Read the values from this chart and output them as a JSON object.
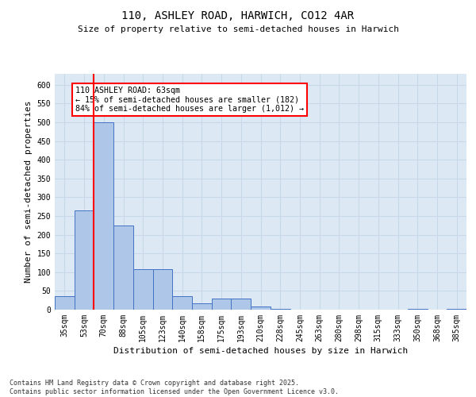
{
  "title1": "110, ASHLEY ROAD, HARWICH, CO12 4AR",
  "title2": "Size of property relative to semi-detached houses in Harwich",
  "xlabel": "Distribution of semi-detached houses by size in Harwich",
  "ylabel": "Number of semi-detached properties",
  "categories": [
    "35sqm",
    "53sqm",
    "70sqm",
    "88sqm",
    "105sqm",
    "123sqm",
    "140sqm",
    "158sqm",
    "175sqm",
    "193sqm",
    "210sqm",
    "228sqm",
    "245sqm",
    "263sqm",
    "280sqm",
    "298sqm",
    "315sqm",
    "333sqm",
    "350sqm",
    "368sqm",
    "385sqm"
  ],
  "values": [
    35,
    265,
    500,
    225,
    108,
    108,
    35,
    18,
    30,
    30,
    8,
    3,
    0,
    0,
    0,
    0,
    0,
    0,
    2,
    0,
    2
  ],
  "bar_color": "#aec6e8",
  "bar_edge_color": "#4472c4",
  "grid_color": "#c8d8e8",
  "background_color": "#dce9f5",
  "vline_color": "red",
  "vline_x": 1.5,
  "annotation_text": "110 ASHLEY ROAD: 63sqm\n← 15% of semi-detached houses are smaller (182)\n84% of semi-detached houses are larger (1,012) →",
  "annotation_box_color": "white",
  "annotation_box_edge_color": "red",
  "footnote": "Contains HM Land Registry data © Crown copyright and database right 2025.\nContains public sector information licensed under the Open Government Licence v3.0.",
  "ylim": [
    0,
    630
  ],
  "yticks": [
    0,
    50,
    100,
    150,
    200,
    250,
    300,
    350,
    400,
    450,
    500,
    550,
    600
  ],
  "title1_fontsize": 10,
  "title2_fontsize": 8,
  "ylabel_fontsize": 8,
  "xlabel_fontsize": 8,
  "tick_fontsize": 7
}
